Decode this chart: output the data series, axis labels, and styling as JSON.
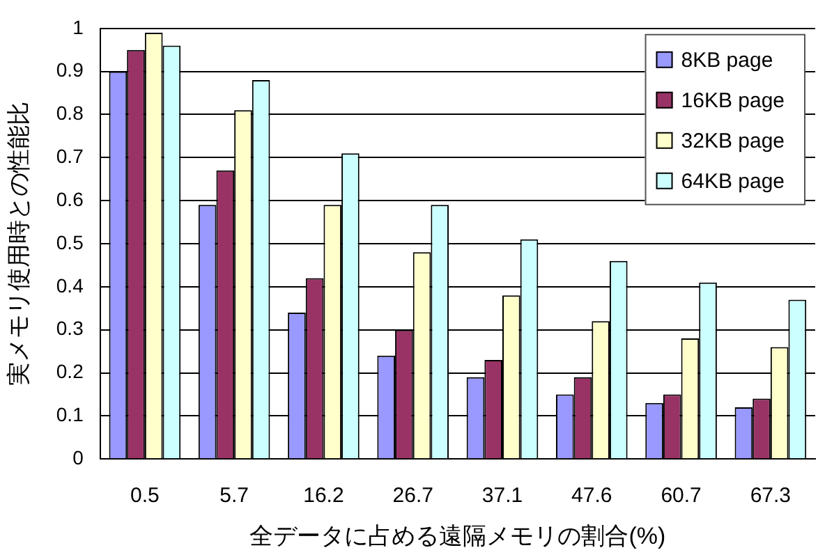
{
  "chart_data": {
    "type": "bar",
    "xlabel": "全データに占める遠隔メモリの割合(%)",
    "ylabel": "実メモリ使用時との性能比",
    "categories": [
      "0.5",
      "5.7",
      "16.2",
      "26.7",
      "37.1",
      "47.6",
      "60.7",
      "67.3"
    ],
    "series": [
      {
        "name": "8KB page",
        "color": "#9999ff",
        "values": [
          0.9,
          0.59,
          0.34,
          0.24,
          0.19,
          0.15,
          0.13,
          0.12
        ]
      },
      {
        "name": "16KB page",
        "color": "#993366",
        "values": [
          0.95,
          0.67,
          0.42,
          0.3,
          0.23,
          0.19,
          0.15,
          0.14
        ]
      },
      {
        "name": "32KB page",
        "color": "#ffffcc",
        "values": [
          0.99,
          0.81,
          0.59,
          0.48,
          0.38,
          0.32,
          0.28,
          0.26
        ]
      },
      {
        "name": "64KB page",
        "color": "#ccffff",
        "values": [
          0.96,
          0.88,
          0.71,
          0.59,
          0.51,
          0.46,
          0.41,
          0.37
        ]
      }
    ],
    "ylim": [
      0,
      1
    ],
    "yticks": [
      0,
      0.1,
      0.2,
      0.3,
      0.4,
      0.5,
      0.6,
      0.7,
      0.8,
      0.9,
      1
    ],
    "grid": "y",
    "legend": "top right"
  }
}
